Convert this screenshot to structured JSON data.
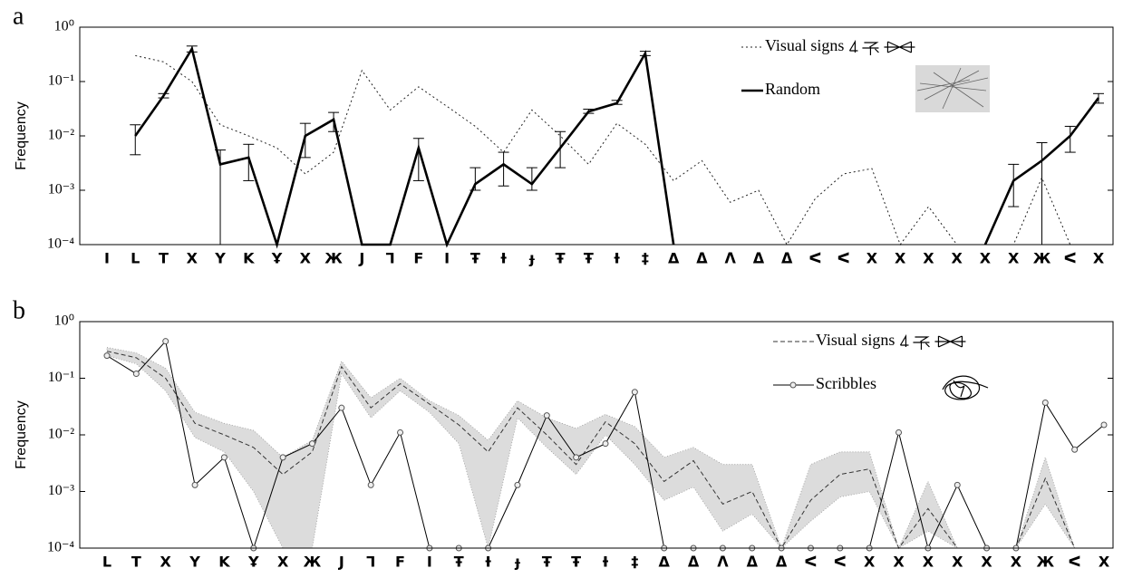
{
  "chart_data": [
    {
      "type": "line",
      "panel_label": "a",
      "y_label": "Frequency",
      "yscale": "log",
      "legend": "upper right",
      "ylim": [
        0.0001,
        1
      ],
      "yticks": [
        {
          "value": 0.0001,
          "label": "10⁻⁴"
        },
        {
          "value": 0.001,
          "label": "10⁻³"
        },
        {
          "value": 0.01,
          "label": "10⁻²"
        },
        {
          "value": 0.1,
          "label": "10⁻¹"
        },
        {
          "value": 1,
          "label": "10⁰"
        }
      ],
      "categories": [
        "I",
        "L",
        "T",
        "X",
        "Y",
        "K",
        "Ұ",
        "X",
        "Ж",
        "J",
        "Ꞁ",
        "F",
        "I",
        "Ŧ",
        "Ɨ",
        "ɟ",
        "Ŧ",
        "Ŧ",
        "Ɨ",
        "‡",
        "Δ",
        "ᐃ",
        "ᐱ",
        "ᐃ",
        "ᐃ",
        "ᐸ",
        "ᐸ",
        "X",
        "X",
        "X",
        "X",
        "X",
        "X",
        "Ж",
        "ᐸ",
        "X"
      ],
      "series": [
        {
          "name": "Visual signs",
          "color": "#222222",
          "linestyle": "dotted",
          "values": [
            null,
            0.3,
            0.23,
            0.1,
            0.016,
            0.01,
            0.006,
            0.002,
            0.005,
            0.16,
            0.03,
            0.08,
            0.035,
            0.015,
            0.005,
            0.03,
            0.01,
            0.003,
            0.017,
            0.007,
            0.0015,
            0.0035,
            0.0006,
            0.001,
            0.0001,
            0.0007,
            0.002,
            0.0025,
            0.0001,
            0.0005,
            0.0001,
            0.0001,
            0.0001,
            0.0017,
            0.0001,
            null
          ]
        },
        {
          "name": "Random",
          "color": "#000000",
          "linestyle": "solid",
          "values": [
            null,
            0.01,
            0.055,
            0.4,
            0.003,
            0.004,
            0.0001,
            0.01,
            0.02,
            0.0001,
            0.0001,
            0.006,
            0.0001,
            0.0013,
            0.003,
            0.0013,
            0.006,
            0.028,
            0.04,
            0.33,
            0.0001,
            null,
            null,
            null,
            null,
            null,
            null,
            null,
            null,
            null,
            null,
            0.0001,
            0.0015,
            0.0035,
            0.01,
            0.05
          ],
          "error_low": [
            null,
            0.0045,
            0.05,
            0.35,
            0.0001,
            0.0015,
            null,
            0.004,
            0.012,
            null,
            null,
            0.0015,
            null,
            0.001,
            0.0012,
            0.001,
            0.0026,
            0.026,
            0.038,
            0.3,
            null,
            null,
            null,
            null,
            null,
            null,
            null,
            null,
            null,
            null,
            null,
            null,
            0.0005,
            0.0001,
            0.005,
            0.04
          ],
          "error_high": [
            null,
            0.016,
            0.06,
            0.45,
            0.0055,
            0.007,
            null,
            0.017,
            0.027,
            null,
            null,
            0.009,
            null,
            0.0026,
            0.005,
            0.0026,
            0.012,
            0.031,
            0.045,
            0.36,
            null,
            null,
            null,
            null,
            null,
            null,
            null,
            null,
            null,
            null,
            null,
            null,
            0.003,
            0.0075,
            0.015,
            0.06
          ]
        }
      ]
    },
    {
      "type": "line",
      "panel_label": "b",
      "y_label": "Frequency",
      "yscale": "log",
      "legend": "upper right",
      "ylim": [
        0.0001,
        1
      ],
      "yticks": [
        {
          "value": 0.0001,
          "label": "10⁻⁴"
        },
        {
          "value": 0.001,
          "label": "10⁻³"
        },
        {
          "value": 0.01,
          "label": "10⁻²"
        },
        {
          "value": 0.1,
          "label": "10⁻¹"
        },
        {
          "value": 1,
          "label": "10⁰"
        }
      ],
      "categories": [
        "L",
        "T",
        "X",
        "Y",
        "K",
        "Ұ",
        "X",
        "Ж",
        "J",
        "Ꞁ",
        "F",
        "I",
        "Ŧ",
        "Ɨ",
        "ɟ",
        "Ŧ",
        "Ŧ",
        "Ɨ",
        "‡",
        "Δ",
        "ᐃ",
        "ᐱ",
        "ᐃ",
        "ᐃ",
        "ᐸ",
        "ᐸ",
        "X",
        "X",
        "X",
        "X",
        "X",
        "X",
        "Ж",
        "ᐸ",
        "X"
      ],
      "band": {
        "color": "#dcdcdc",
        "upper": [
          0.35,
          0.28,
          0.15,
          0.025,
          0.016,
          0.012,
          0.004,
          0.008,
          0.2,
          0.045,
          0.1,
          0.04,
          0.022,
          0.008,
          0.04,
          0.02,
          0.013,
          0.023,
          0.014,
          0.004,
          0.006,
          0.003,
          0.003,
          0.0001,
          0.003,
          0.005,
          0.005,
          0.0001,
          0.0015,
          0.0001,
          0.0001,
          0.0001,
          0.004,
          0.0001,
          null
        ],
        "lower": [
          0.25,
          0.18,
          0.06,
          0.009,
          0.005,
          0.001,
          0.0001,
          0.0001,
          0.12,
          0.02,
          0.06,
          0.025,
          0.007,
          0.0001,
          0.02,
          0.006,
          0.002,
          0.01,
          0.003,
          0.0007,
          0.0012,
          0.0002,
          0.0004,
          0.0001,
          0.0003,
          0.0008,
          0.001,
          0.0001,
          0.0002,
          0.0001,
          0.0001,
          0.0001,
          0.0006,
          0.0001,
          null
        ]
      },
      "series": [
        {
          "name": "Visual signs",
          "color": "#333333",
          "linestyle": "dashed",
          "values": [
            0.3,
            0.23,
            0.1,
            0.016,
            0.01,
            0.006,
            0.002,
            0.005,
            0.16,
            0.03,
            0.08,
            0.035,
            0.015,
            0.005,
            0.03,
            0.01,
            0.003,
            0.017,
            0.007,
            0.0015,
            0.0035,
            0.0006,
            0.001,
            0.0001,
            0.0007,
            0.002,
            0.0025,
            0.0001,
            0.0005,
            0.0001,
            0.0001,
            0.0001,
            0.0017,
            0.0001,
            null
          ]
        },
        {
          "name": "Scribbles",
          "color": "#000000",
          "linestyle": "solid",
          "marker": "circle",
          "values": [
            0.25,
            0.12,
            0.45,
            0.0013,
            0.004,
            0.0001,
            0.004,
            0.007,
            0.03,
            0.0013,
            0.011,
            0.0001,
            0.0001,
            0.0001,
            0.0013,
            0.022,
            0.004,
            0.007,
            0.057,
            0.0001,
            0.0001,
            0.0001,
            0.0001,
            0.0001,
            0.0001,
            0.0001,
            0.0001,
            0.011,
            0.0001,
            0.0013,
            0.0001,
            0.0001,
            0.037,
            0.0055,
            0.015
          ]
        }
      ]
    }
  ]
}
